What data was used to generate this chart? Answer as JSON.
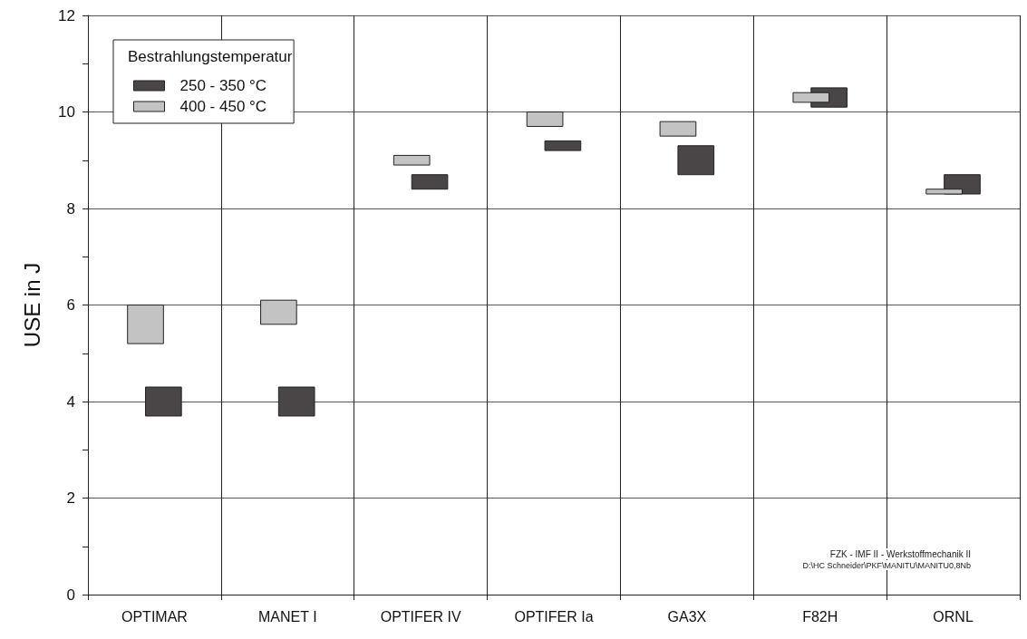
{
  "chart_data": {
    "type": "bar",
    "ylabel": "USE in J",
    "legend_title": "Bestrahlungstemperatur",
    "categories": [
      "OPTIMAR",
      "MANET I",
      "OPTIFER IV",
      "OPTIFER Ia",
      "GA3X",
      "F82H",
      "ORNL"
    ],
    "series": [
      {
        "name": "250 - 350 °C",
        "color": "#4a4546",
        "base": [
          3.7,
          3.7,
          8.4,
          9.2,
          8.7,
          10.1,
          8.3
        ],
        "values": [
          0.6,
          0.6,
          0.3,
          0.2,
          0.6,
          0.4,
          0.4
        ]
      },
      {
        "name": "400 - 450 °C",
        "color": "#c3c3c3",
        "base": [
          5.2,
          5.6,
          8.9,
          9.7,
          9.5,
          10.2,
          8.3
        ],
        "values": [
          0.8,
          0.5,
          0.2,
          0.3,
          0.3,
          0.2,
          0.1
        ]
      }
    ],
    "ylim": [
      0,
      12
    ],
    "yticks": [
      0,
      {
        "value": 1,
        "label": null
      },
      2,
      {
        "value": 3,
        "label": null
      },
      4,
      {
        "value": 5,
        "label": null
      },
      6,
      {
        "value": 7,
        "label": null
      },
      8,
      {
        "value": 9,
        "label": null
      },
      10,
      {
        "value": 11,
        "label": null
      },
      12
    ],
    "grid": true,
    "legend": "top left",
    "annotations": [
      "FZK - IMF II - Werkstoffmechanik II",
      "D:\\HC Schneider\\PKF\\MANITU\\MANITU0,8Nb"
    ]
  }
}
